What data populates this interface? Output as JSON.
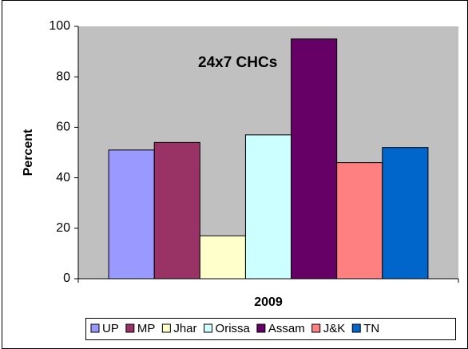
{
  "chart_data": {
    "type": "bar",
    "annotation": "24x7 CHCs",
    "ylabel": "Percent",
    "categories": [
      "2009"
    ],
    "series": [
      {
        "name": "UP",
        "color": "#9999ff",
        "values": [
          51
        ]
      },
      {
        "name": "MP",
        "color": "#993366",
        "values": [
          54
        ]
      },
      {
        "name": "Jhar",
        "color": "#ffffcc",
        "values": [
          17
        ]
      },
      {
        "name": "Orissa",
        "color": "#ccffff",
        "values": [
          57
        ]
      },
      {
        "name": "Assam",
        "color": "#660066",
        "values": [
          95
        ]
      },
      {
        "name": "J&K",
        "color": "#ff8080",
        "values": [
          46
        ]
      },
      {
        "name": "TN",
        "color": "#0066cc",
        "values": [
          52
        ]
      }
    ],
    "ylim": [
      0,
      100
    ],
    "yticks": [
      0,
      20,
      40,
      60,
      80,
      100
    ],
    "grid": false,
    "legend": "bottom"
  }
}
